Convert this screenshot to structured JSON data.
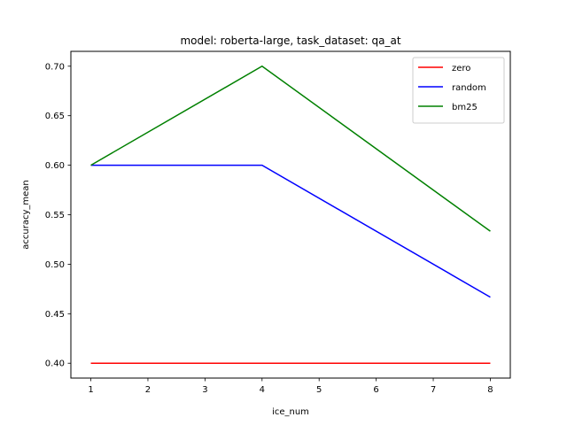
{
  "chart_data": {
    "type": "line",
    "title": "model: roberta-large, task_dataset: qa_at",
    "xlabel": "ice_num",
    "ylabel": "accuracy_mean",
    "x": [
      1,
      4,
      8
    ],
    "xlim": [
      0.65,
      8.35
    ],
    "ylim": [
      0.385,
      0.715
    ],
    "xticks": [
      1,
      2,
      3,
      4,
      5,
      6,
      7,
      8
    ],
    "yticks": [
      "0.40",
      "0.45",
      "0.50",
      "0.55",
      "0.60",
      "0.65",
      "0.70"
    ],
    "grid": false,
    "legend_position": "top-right",
    "series": [
      {
        "name": "zero",
        "color": "#ff0000",
        "values": [
          0.4,
          0.4,
          0.4
        ]
      },
      {
        "name": "random",
        "color": "#0000ff",
        "values": [
          0.6,
          0.6,
          0.4667
        ]
      },
      {
        "name": "bm25",
        "color": "#008000",
        "values": [
          0.6,
          0.7,
          0.5333
        ]
      }
    ]
  }
}
